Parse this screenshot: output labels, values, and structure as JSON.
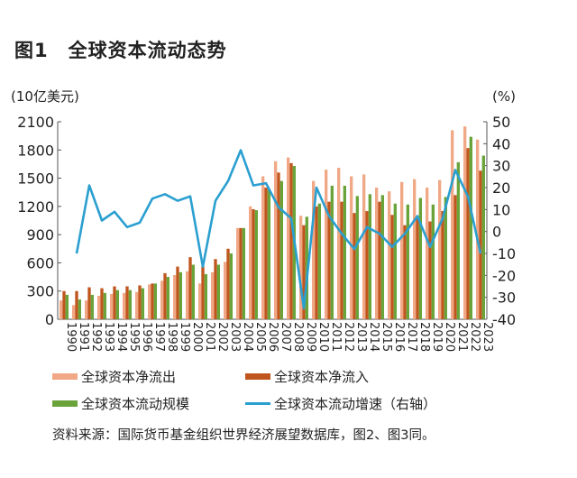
{
  "title": {
    "number": "图1",
    "text": "全球资本流动态势"
  },
  "source": "资料来源：国际货币基金组织世界经济展望数据库，图2、图3同。",
  "chart_data": {
    "type": "bar+line",
    "ylabel_left": "(10亿美元)",
    "ylabel_right": "(%)",
    "ylim_left": [
      0,
      2100
    ],
    "yticks_left": [
      0,
      300,
      600,
      900,
      1200,
      1500,
      1800,
      2100
    ],
    "ylim_right": [
      -40,
      50
    ],
    "yticks_right": [
      -40,
      -30,
      -20,
      -10,
      0,
      10,
      20,
      30,
      40,
      50
    ],
    "grid": false,
    "legend_placement": "bottom",
    "categories": [
      "1990",
      "1991",
      "1992",
      "1993",
      "1994",
      "1995",
      "1996",
      "1997",
      "1998",
      "1999",
      "2000",
      "2001",
      "2002",
      "2003",
      "2004",
      "2005",
      "2006",
      "2007",
      "2008",
      "2009",
      "2010",
      "2011",
      "2012",
      "2013",
      "2014",
      "2015",
      "2016",
      "2017",
      "2018",
      "2019",
      "2020",
      "2021",
      "2022",
      "2023"
    ],
    "series": [
      {
        "name": "全球资本净流出",
        "type": "bar",
        "axis": "left",
        "color": "#f0a886",
        "values": [
          200,
          150,
          200,
          250,
          270,
          280,
          290,
          370,
          410,
          470,
          510,
          380,
          500,
          610,
          970,
          1200,
          1520,
          1680,
          1720,
          1100,
          1470,
          1590,
          1610,
          1520,
          1540,
          1400,
          1360,
          1460,
          1490,
          1400,
          1480,
          2010,
          2050,
          1910
        ]
      },
      {
        "name": "全球资本净流入",
        "type": "bar",
        "axis": "left",
        "color": "#c0561e",
        "values": [
          300,
          300,
          340,
          330,
          350,
          350,
          360,
          380,
          490,
          560,
          660,
          560,
          640,
          750,
          970,
          1170,
          1400,
          1560,
          1660,
          1000,
          1200,
          1250,
          1250,
          1130,
          1150,
          1250,
          1110,
          1000,
          1100,
          1040,
          1150,
          1320,
          1820,
          1580
        ]
      },
      {
        "name": "全球资本流动规模",
        "type": "bar",
        "axis": "left",
        "color": "#6aa33a",
        "values": [
          260,
          210,
          260,
          280,
          310,
          310,
          330,
          380,
          450,
          500,
          580,
          480,
          580,
          700,
          970,
          1160,
          1380,
          1470,
          1630,
          1090,
          1230,
          1420,
          1420,
          1310,
          1330,
          1320,
          1230,
          1220,
          1290,
          1220,
          1300,
          1670,
          1940,
          1740
        ]
      },
      {
        "name": "全球资本流动增速（右轴）",
        "type": "line",
        "axis": "right",
        "color": "#2a9fd0",
        "values": [
          null,
          -10,
          21,
          5,
          9,
          2,
          4,
          15,
          17,
          14,
          16,
          -16,
          14,
          23,
          37,
          21,
          22,
          11,
          6,
          -35,
          20,
          7,
          -1,
          -8,
          2,
          -1,
          -7,
          -1,
          7,
          -7,
          6,
          28,
          16,
          -10
        ]
      }
    ]
  }
}
